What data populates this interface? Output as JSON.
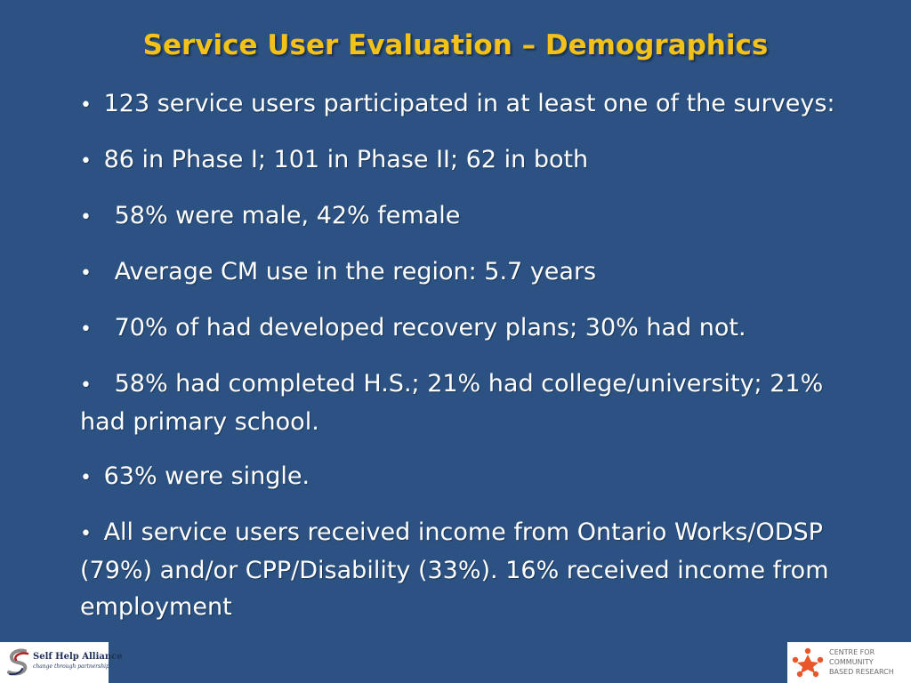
{
  "slide": {
    "title": "Service User Evaluation – Demographics",
    "bullets": [
      {
        "marker": "•",
        "text": " 123 service users participated in at least one of the surveys:"
      },
      {
        "marker": "•",
        "text": " 86 in Phase I; 101 in Phase II; 62 in both"
      },
      {
        "marker": "•",
        "text": " 58% were male, 42% female"
      },
      {
        "marker": "•",
        "text": " Average CM use in the region: 5.7 years"
      },
      {
        "marker": "•",
        "text": " 70% of had developed recovery plans; 30% had not."
      },
      {
        "marker": "•",
        "text": " 58% had completed H.S.; 21% had college/university; 21% had primary school."
      },
      {
        "marker": "•",
        "text": " 63% were single."
      },
      {
        "marker": "•",
        "text": " All service users received income from Ontario Works/ODSP (79%) and/or CPP/Disability (33%).  16% received income from employment"
      }
    ]
  },
  "logos": {
    "left": {
      "name": "Self Help Alliance",
      "tagline": "change through partnership"
    },
    "right": {
      "line1": "CENTRE FOR",
      "line2": "COMMUNITY",
      "line3": "BASED RESEARCH"
    }
  },
  "colors": {
    "background": "#2c5283",
    "title": "#f3c21a",
    "text": "#ffffff"
  }
}
